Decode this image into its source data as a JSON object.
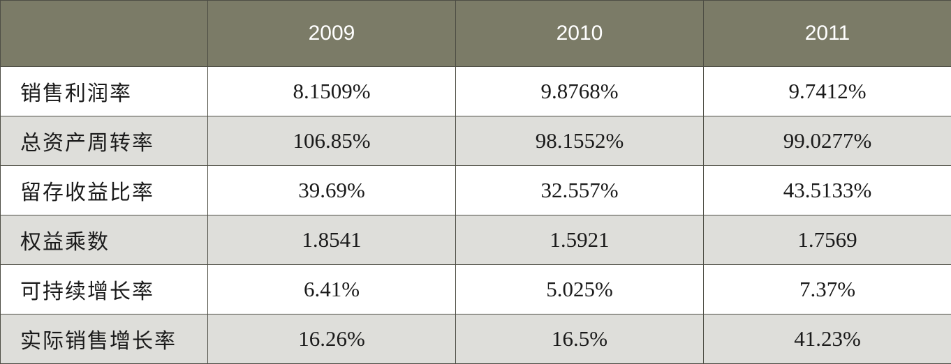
{
  "chart_data": {
    "type": "table",
    "header": {
      "corner": "",
      "columns": [
        "2009",
        "2010",
        "2011"
      ]
    },
    "rows": [
      {
        "label": "销售利润率",
        "values": [
          "8.1509%",
          "9.8768%",
          "9.7412%"
        ]
      },
      {
        "label": "总资产周转率",
        "values": [
          "106.85%",
          "98.1552%",
          "99.0277%"
        ]
      },
      {
        "label": "留存收益比率",
        "values": [
          "39.69%",
          "32.557%",
          "43.5133%"
        ]
      },
      {
        "label": "权益乘数",
        "values": [
          "1.8541",
          "1.5921",
          "1.7569"
        ]
      },
      {
        "label": "可持续增长率",
        "values": [
          "6.41%",
          "5.025%",
          "7.37%"
        ]
      },
      {
        "label": "实际销售增长率",
        "values": [
          "16.26%",
          "16.5%",
          "41.23%"
        ]
      }
    ],
    "colors": {
      "header_background": "#7b7b67",
      "header_text": "#ffffff",
      "row_light": "#ffffff",
      "row_shaded": "#dededa",
      "border": "#4d4d44"
    }
  }
}
